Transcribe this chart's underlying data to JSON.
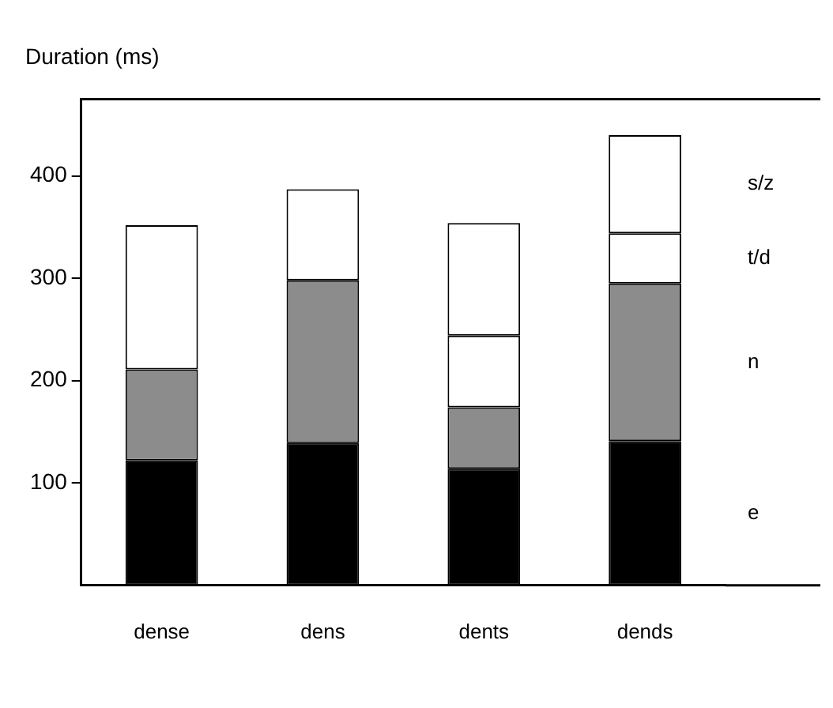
{
  "chart_data": {
    "type": "bar",
    "title": "Duration (ms)",
    "categories": [
      "dense",
      "dens",
      "dents",
      "dends"
    ],
    "stacked": true,
    "ylim": [
      0,
      475
    ],
    "yticks": [
      100,
      200,
      300,
      400
    ],
    "grid": false,
    "legend": false,
    "series": [
      {
        "name": "e",
        "color": "#000000",
        "values": [
          122,
          139,
          114,
          141
        ]
      },
      {
        "name": "n",
        "color": "#8c8c8c",
        "values": [
          89,
          159,
          60,
          154
        ]
      },
      {
        "name": "t/d",
        "color": "#ffffff",
        "values": [
          null,
          null,
          70,
          49
        ]
      },
      {
        "name": "s/z",
        "color": "#ffffff",
        "values": [
          141,
          89,
          110,
          96
        ]
      }
    ]
  }
}
